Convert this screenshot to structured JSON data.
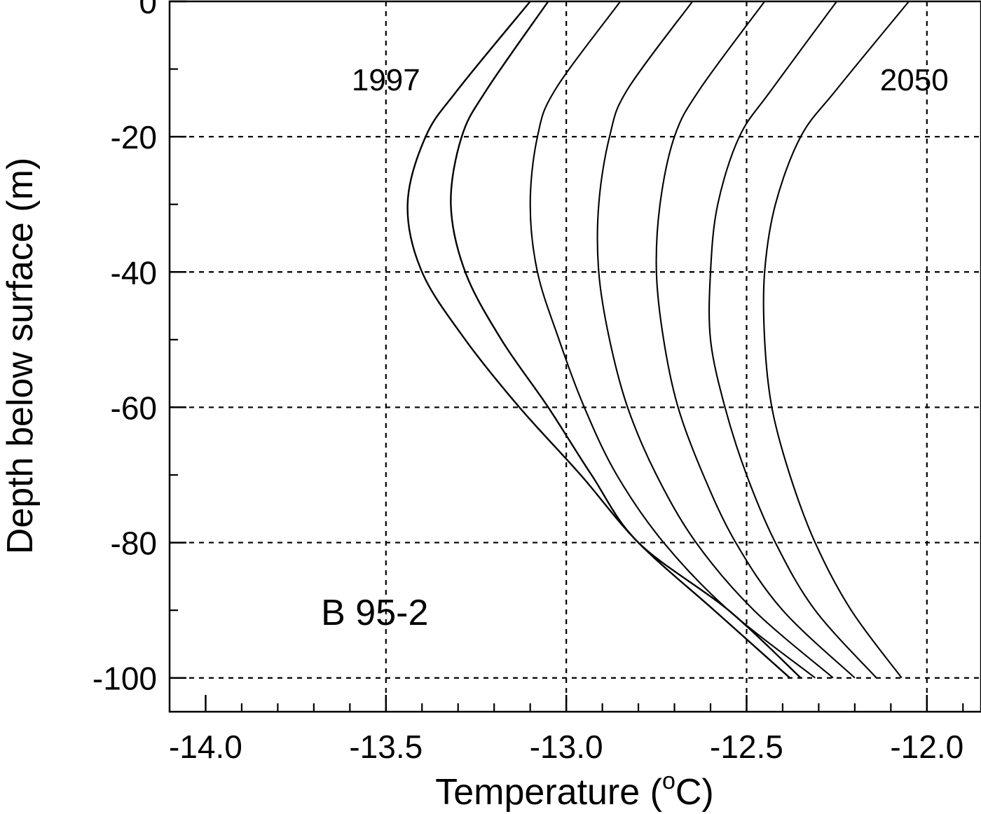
{
  "chart_data": {
    "type": "line",
    "title": "",
    "xlabel": "Temperature (",
    "xlabel_sup": "o",
    "xlabel_tail": "C)",
    "ylabel": "Depth below surface (m)",
    "xlim": [
      -14.1,
      -11.85
    ],
    "ylim": [
      -105,
      0
    ],
    "x_ticks": [
      -14.0,
      -13.5,
      -13.0,
      -12.5,
      -12.0
    ],
    "x_tick_labels": [
      "-14.0",
      "-13.5",
      "-13.0",
      "-12.5",
      "-12.0"
    ],
    "y_ticks": [
      0,
      -20,
      -40,
      -60,
      -80,
      -100
    ],
    "y_tick_labels": [
      "0",
      "-20",
      "-40",
      "-60",
      "-80",
      "-100"
    ],
    "grid": true,
    "annotations": [
      {
        "text": "1997",
        "x": -13.5,
        "y": -11.5
      },
      {
        "text": "2050",
        "x": -11.94,
        "y": -11.5
      },
      {
        "text": "B 95-2",
        "x": -13.68,
        "y": -90.5
      }
    ],
    "series": [
      {
        "points": [
          [
            -13.1,
            0
          ],
          [
            -13.3,
            -13
          ],
          [
            -13.39,
            -20
          ],
          [
            -13.44,
            -30
          ],
          [
            -13.4,
            -40
          ],
          [
            -13.28,
            -50
          ],
          [
            -13.13,
            -60
          ],
          [
            -12.96,
            -70
          ],
          [
            -12.8,
            -80
          ],
          [
            -12.59,
            -90
          ],
          [
            -12.38,
            -100
          ]
        ]
      },
      {
        "points": [
          [
            -13.05,
            0
          ],
          [
            -13.22,
            -13
          ],
          [
            -13.29,
            -20
          ],
          [
            -13.32,
            -30
          ],
          [
            -13.28,
            -40
          ],
          [
            -13.18,
            -50
          ],
          [
            -13.05,
            -60
          ],
          [
            -12.93,
            -70
          ],
          [
            -12.8,
            -80
          ],
          [
            -12.55,
            -90
          ],
          [
            -12.35,
            -100
          ]
        ]
      },
      {
        "points": [
          [
            -12.85,
            0
          ],
          [
            -13.03,
            -13
          ],
          [
            -13.08,
            -20
          ],
          [
            -13.1,
            -30
          ],
          [
            -13.08,
            -40
          ],
          [
            -13.02,
            -50
          ],
          [
            -12.95,
            -60
          ],
          [
            -12.86,
            -70
          ],
          [
            -12.73,
            -80
          ],
          [
            -12.55,
            -90
          ],
          [
            -12.31,
            -100
          ]
        ]
      },
      {
        "points": [
          [
            -12.65,
            0
          ],
          [
            -12.83,
            -13
          ],
          [
            -12.88,
            -20
          ],
          [
            -12.91,
            -30
          ],
          [
            -12.91,
            -40
          ],
          [
            -12.88,
            -50
          ],
          [
            -12.83,
            -60
          ],
          [
            -12.75,
            -70
          ],
          [
            -12.64,
            -80
          ],
          [
            -12.48,
            -90
          ],
          [
            -12.26,
            -100
          ]
        ]
      },
      {
        "points": [
          [
            -12.45,
            0
          ],
          [
            -12.63,
            -13
          ],
          [
            -12.7,
            -20
          ],
          [
            -12.74,
            -30
          ],
          [
            -12.75,
            -40
          ],
          [
            -12.73,
            -50
          ],
          [
            -12.69,
            -60
          ],
          [
            -12.62,
            -70
          ],
          [
            -12.53,
            -80
          ],
          [
            -12.4,
            -90
          ],
          [
            -12.2,
            -100
          ]
        ]
      },
      {
        "points": [
          [
            -12.25,
            0
          ],
          [
            -12.43,
            -13
          ],
          [
            -12.52,
            -20
          ],
          [
            -12.58,
            -30
          ],
          [
            -12.6,
            -40
          ],
          [
            -12.6,
            -50
          ],
          [
            -12.56,
            -60
          ],
          [
            -12.5,
            -70
          ],
          [
            -12.42,
            -80
          ],
          [
            -12.31,
            -90
          ],
          [
            -12.14,
            -100
          ]
        ]
      },
      {
        "points": [
          [
            -12.05,
            0
          ],
          [
            -12.25,
            -13
          ],
          [
            -12.35,
            -20
          ],
          [
            -12.42,
            -30
          ],
          [
            -12.45,
            -40
          ],
          [
            -12.45,
            -50
          ],
          [
            -12.43,
            -60
          ],
          [
            -12.38,
            -70
          ],
          [
            -12.31,
            -80
          ],
          [
            -12.21,
            -90
          ],
          [
            -12.07,
            -100
          ]
        ]
      }
    ]
  }
}
